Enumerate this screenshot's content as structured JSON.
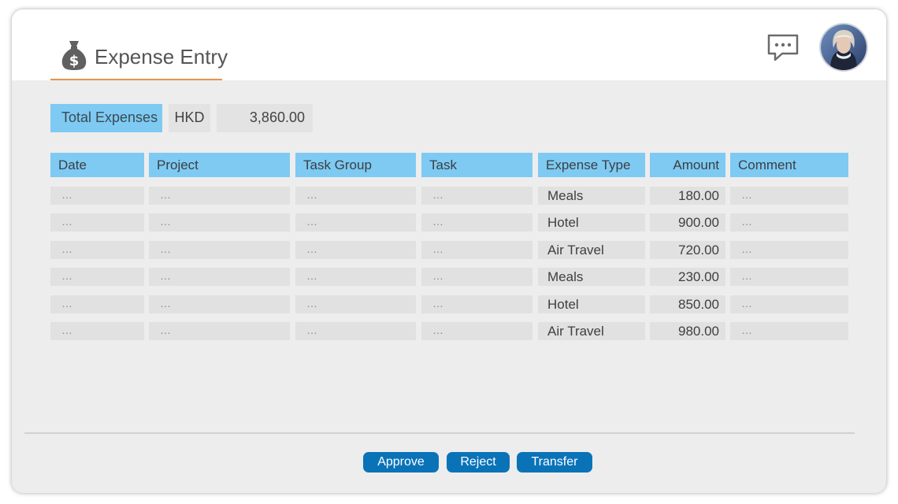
{
  "header": {
    "title": "Expense Entry",
    "title_icon": "money-bag-icon",
    "chat_icon": "chat-bubble-icon",
    "avatar": "user-avatar"
  },
  "summary": {
    "label": "Total Expenses",
    "currency": "HKD",
    "total": "3,860.00"
  },
  "table": {
    "columns": [
      "Date",
      "Project",
      "Task Group",
      "Task",
      "Expense Type",
      "Amount",
      "Comment"
    ],
    "rows": [
      {
        "date": "…",
        "project": "…",
        "task_group": "…",
        "task": "…",
        "expense_type": "Meals",
        "amount": "180.00",
        "comment": "…"
      },
      {
        "date": "…",
        "project": "…",
        "task_group": "…",
        "task": "…",
        "expense_type": "Hotel",
        "amount": "900.00",
        "comment": "…"
      },
      {
        "date": "…",
        "project": "…",
        "task_group": "…",
        "task": "…",
        "expense_type": "Air Travel",
        "amount": "720.00",
        "comment": "…"
      },
      {
        "date": "…",
        "project": "…",
        "task_group": "…",
        "task": "…",
        "expense_type": "Meals",
        "amount": "230.00",
        "comment": "…"
      },
      {
        "date": "…",
        "project": "…",
        "task_group": "…",
        "task": "…",
        "expense_type": "Hotel",
        "amount": "850.00",
        "comment": "…"
      },
      {
        "date": "…",
        "project": "…",
        "task_group": "…",
        "task": "…",
        "expense_type": "Air Travel",
        "amount": "980.00",
        "comment": "…"
      }
    ]
  },
  "actions": {
    "approve": "Approve",
    "reject": "Reject",
    "transfer": "Transfer"
  },
  "colors": {
    "header_fill": "#7ecaf2",
    "cell_fill": "#e1e1e1",
    "button": "#0a73b8",
    "title_underline": "#e8944a"
  }
}
